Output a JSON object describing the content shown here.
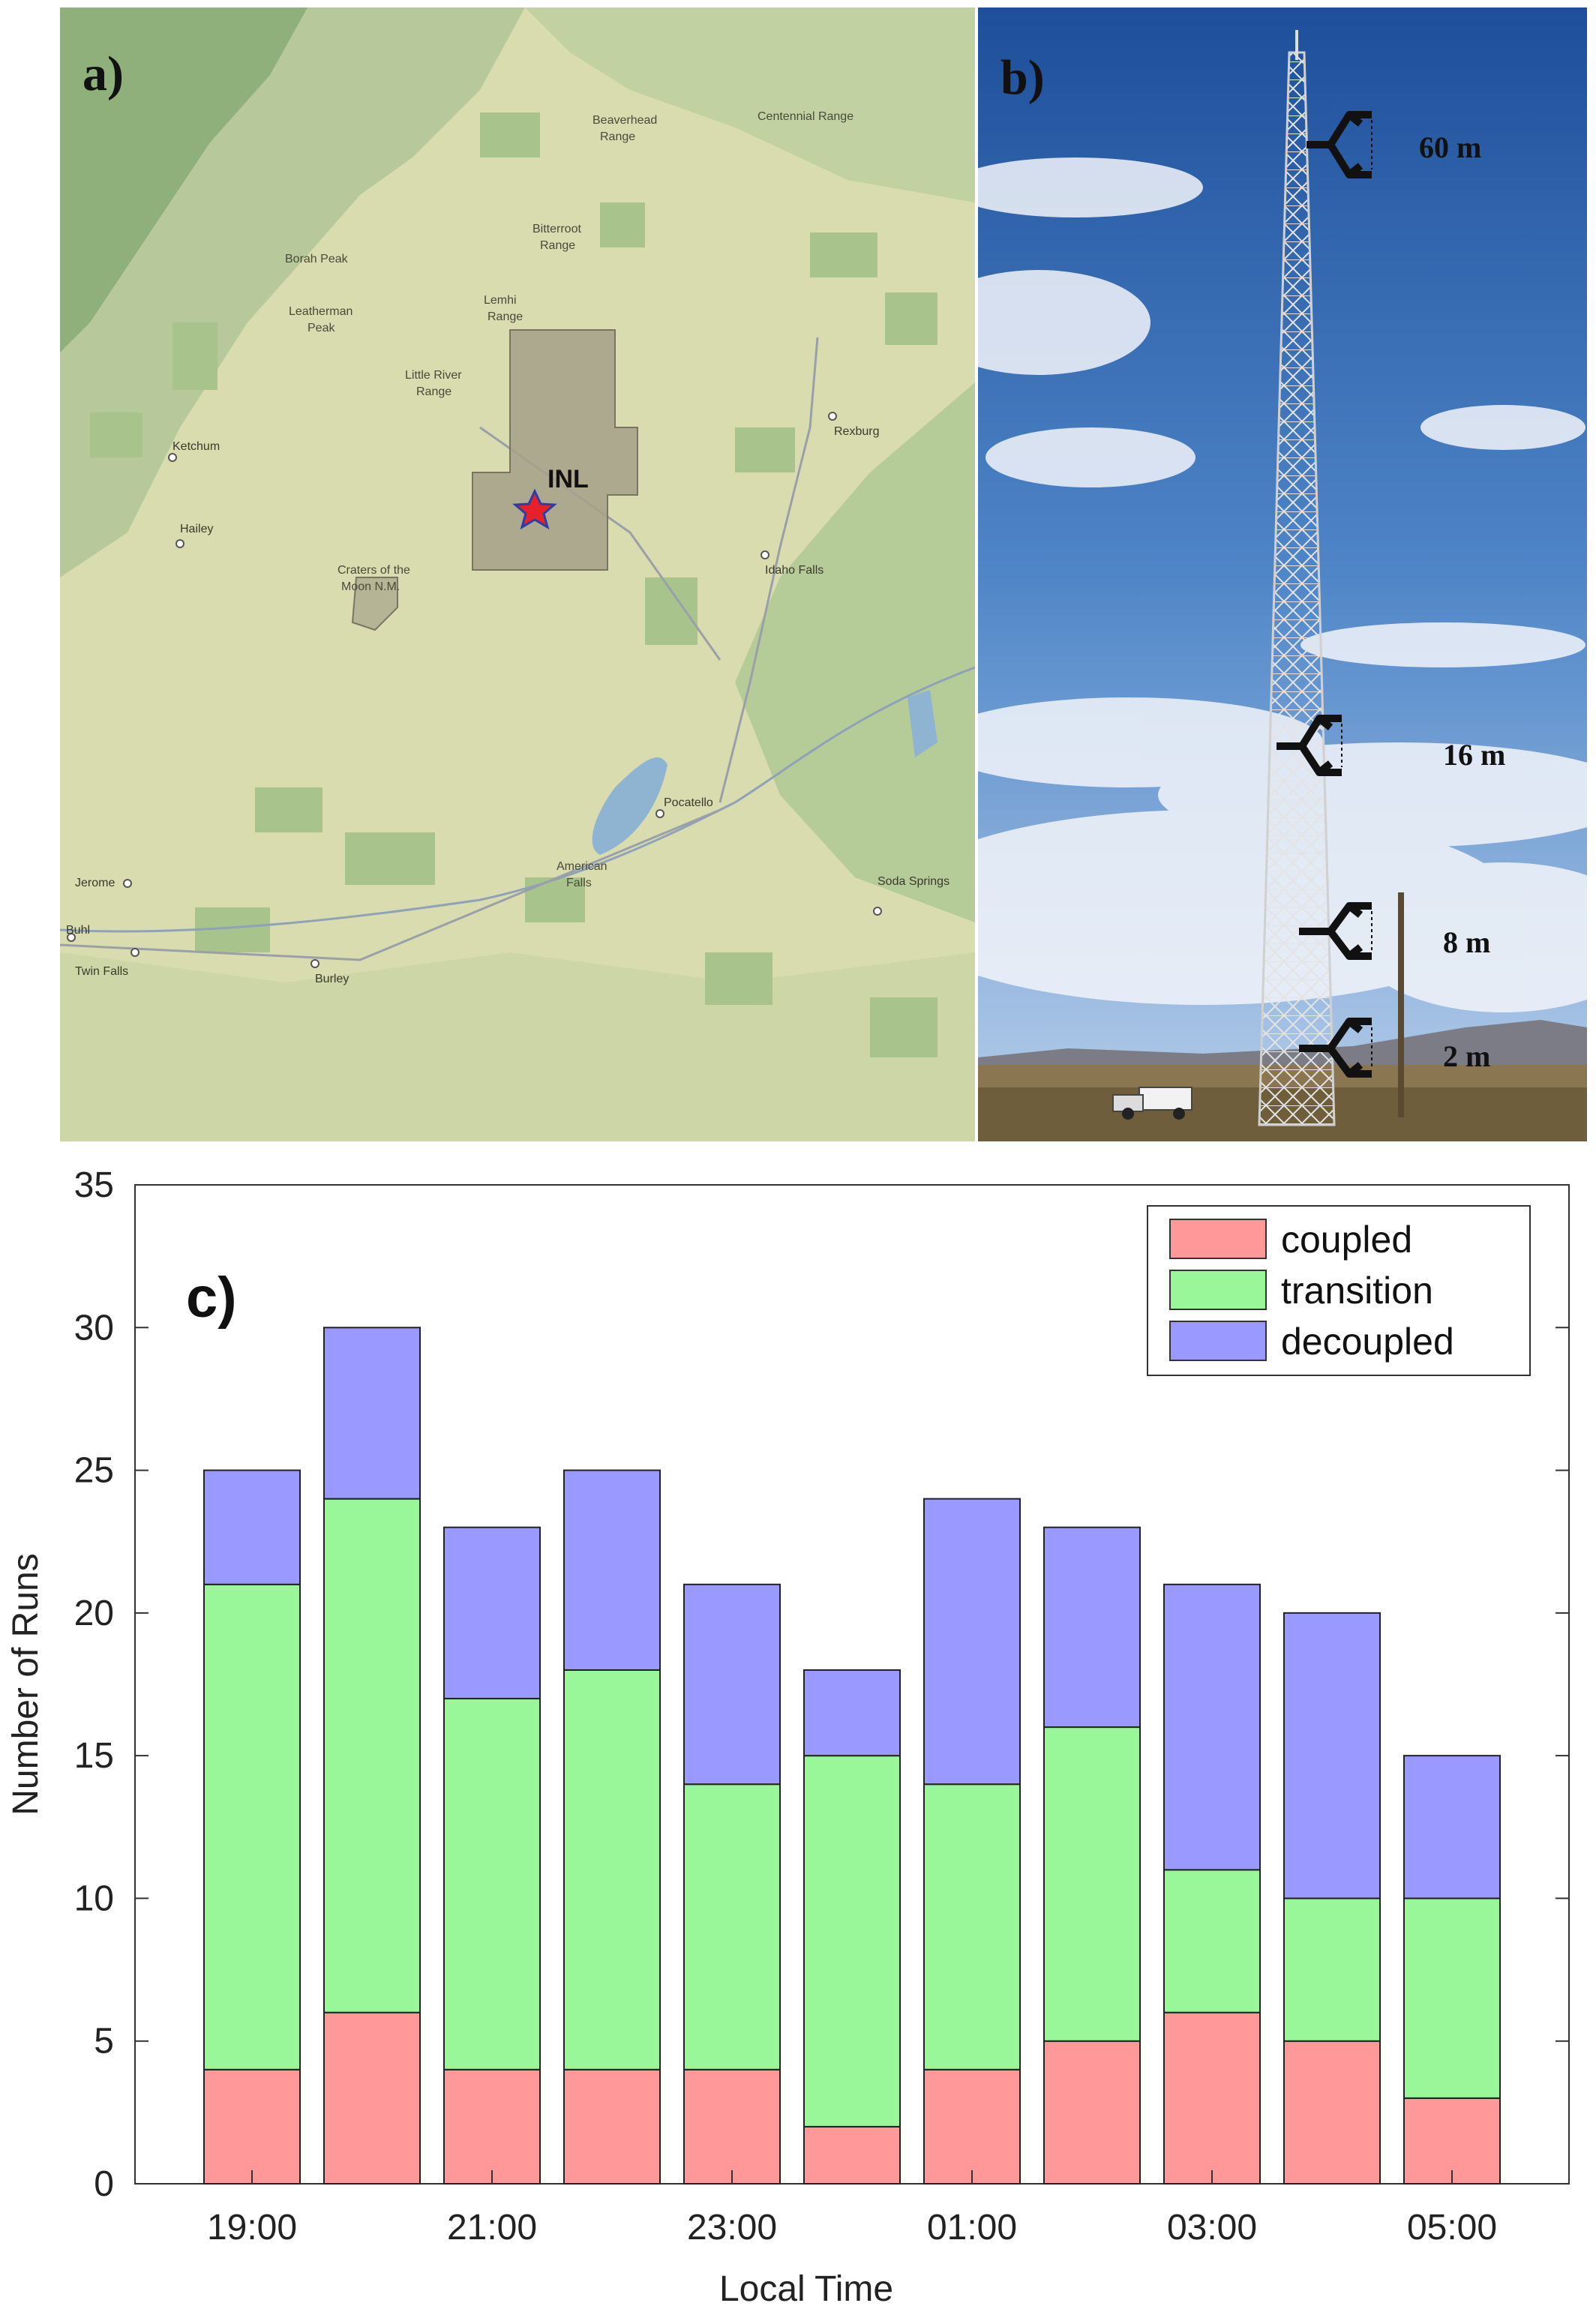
{
  "panel_a": {
    "letter": "a)",
    "site_label": "INL",
    "places": [
      {
        "name": "Ketchum"
      },
      {
        "name": "Hailey"
      },
      {
        "name": "Rexburg"
      },
      {
        "name": "Idaho Falls"
      },
      {
        "name": "Pocatello"
      },
      {
        "name": "Jerome"
      },
      {
        "name": "Buhl"
      },
      {
        "name": "Twin Falls"
      },
      {
        "name": "Burley"
      },
      {
        "name": "Soda Springs"
      }
    ],
    "ranges": {
      "borah": "Borah Peak",
      "leatherman1": "Leatherman",
      "leatherman2": "Peak",
      "little_river1": "Little River",
      "little_river2": "Range",
      "lemhi1": "Lemhi",
      "lemhi2": "Range",
      "bitterroot1": "Bitterroot",
      "bitterroot2": "Range",
      "beaverhead1": "Beaverhead",
      "beaverhead2": "Range",
      "centennial": "Centennial Range",
      "craters1": "Craters of the",
      "craters2": "Moon N.M.",
      "american_falls1": "American",
      "american_falls2": "Falls"
    },
    "colors": {
      "land": "#d9dcae",
      "forest": "#a8c48c",
      "site_area": "#a5a28a",
      "star": "#e8202a"
    }
  },
  "panel_b": {
    "letter": "b)",
    "heights": [
      "60 m",
      "16 m",
      "8 m",
      "2 m"
    ]
  },
  "chart_data": {
    "type": "stacked-bar",
    "panel_label": "c)",
    "xlabel": "Local Time",
    "ylabel": "Number of Runs",
    "ylim": [
      0,
      35
    ],
    "yticks": [
      0,
      5,
      10,
      15,
      20,
      25,
      30,
      35
    ],
    "xtick_labels": [
      "19:00",
      "21:00",
      "23:00",
      "01:00",
      "03:00",
      "05:00"
    ],
    "xtick_bar_indices": [
      0,
      2,
      4,
      6,
      8,
      10
    ],
    "bar_count": 11,
    "series": [
      {
        "name": "coupled",
        "color": "#ff9999",
        "values": [
          4,
          6,
          4,
          4,
          4,
          2,
          4,
          5,
          6,
          5,
          3
        ]
      },
      {
        "name": "transition",
        "color": "#99f799",
        "values": [
          17,
          18,
          13,
          14,
          10,
          13,
          10,
          11,
          5,
          5,
          7
        ]
      },
      {
        "name": "decoupled",
        "color": "#9999ff",
        "values": [
          4,
          6,
          6,
          7,
          7,
          3,
          10,
          7,
          10,
          10,
          5
        ]
      }
    ],
    "legend_position": "top-right",
    "grid": false
  }
}
